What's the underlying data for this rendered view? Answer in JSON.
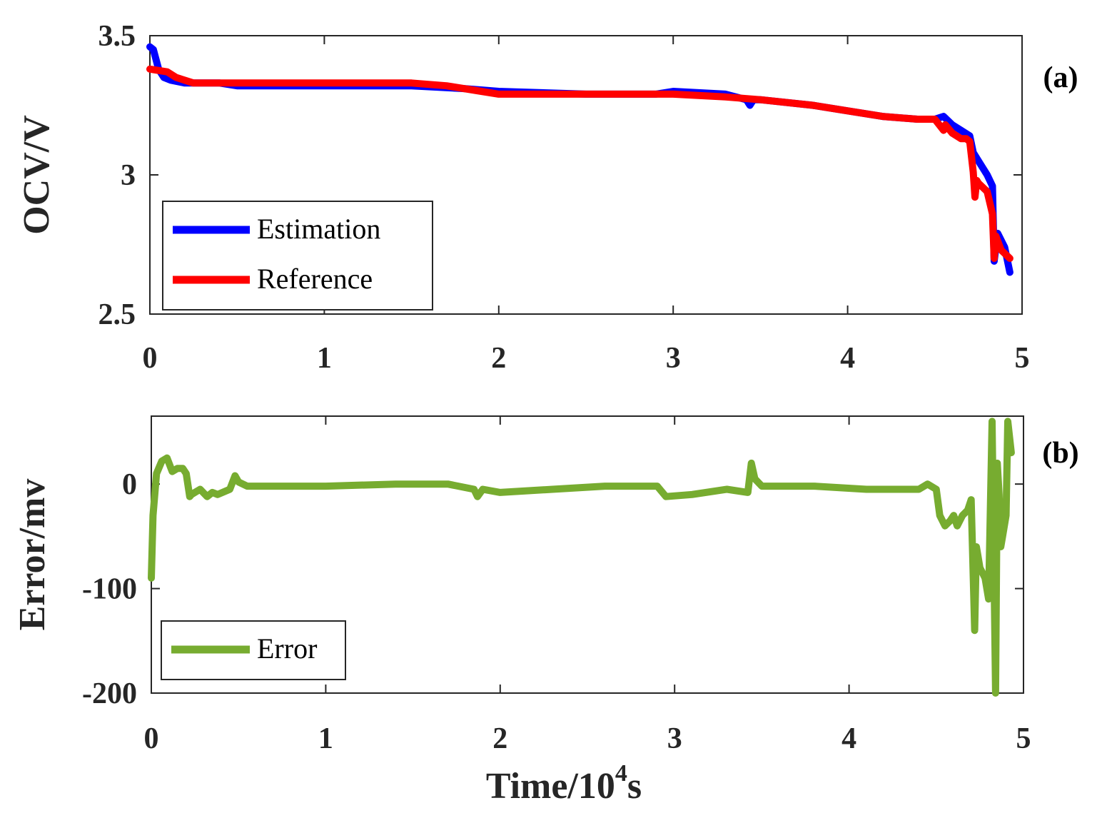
{
  "chart_data": [
    {
      "panel_label": "(a)",
      "type": "line",
      "xlabel": "",
      "ylabel": "OCV/V",
      "xlim": [
        0,
        5
      ],
      "ylim": [
        2.5,
        3.5
      ],
      "xticks": [
        "0",
        "1",
        "2",
        "3",
        "4",
        "5"
      ],
      "yticks": [
        "2.5",
        "3",
        "3.5"
      ],
      "xtick_values": [
        0,
        1,
        2,
        3,
        4,
        5
      ],
      "ytick_values": [
        2.5,
        3.0,
        3.5
      ],
      "grid": false,
      "legend_position": "bottom-left",
      "series": [
        {
          "name": "Estimation",
          "color": "#0000ff",
          "x": [
            0,
            0.02,
            0.05,
            0.08,
            0.12,
            0.2,
            0.3,
            0.4,
            0.5,
            0.7,
            1.0,
            1.5,
            1.8,
            2.0,
            2.5,
            2.9,
            3.0,
            3.3,
            3.42,
            3.44,
            3.46,
            3.5,
            3.8,
            4.0,
            4.2,
            4.4,
            4.5,
            4.55,
            4.6,
            4.65,
            4.7,
            4.72,
            4.75,
            4.8,
            4.83,
            4.84,
            4.86,
            4.9,
            4.93
          ],
          "y": [
            3.46,
            3.45,
            3.38,
            3.35,
            3.34,
            3.33,
            3.33,
            3.33,
            3.32,
            3.32,
            3.32,
            3.32,
            3.31,
            3.3,
            3.29,
            3.29,
            3.3,
            3.29,
            3.27,
            3.25,
            3.27,
            3.27,
            3.25,
            3.23,
            3.21,
            3.2,
            3.2,
            3.21,
            3.18,
            3.16,
            3.14,
            3.08,
            3.05,
            3.0,
            2.96,
            2.69,
            2.79,
            2.74,
            2.65
          ]
        },
        {
          "name": "Reference",
          "color": "#ff0000",
          "x": [
            0,
            0.1,
            0.15,
            0.25,
            0.5,
            1.0,
            1.5,
            1.7,
            1.9,
            2.0,
            2.5,
            3.0,
            3.3,
            3.5,
            3.8,
            4.0,
            4.2,
            4.4,
            4.5,
            4.55,
            4.56,
            4.6,
            4.65,
            4.68,
            4.7,
            4.72,
            4.73,
            4.74,
            4.75,
            4.8,
            4.83,
            4.84,
            4.85,
            4.88,
            4.93
          ],
          "y": [
            3.38,
            3.37,
            3.35,
            3.33,
            3.33,
            3.33,
            3.33,
            3.32,
            3.3,
            3.29,
            3.29,
            3.29,
            3.28,
            3.27,
            3.25,
            3.23,
            3.21,
            3.2,
            3.2,
            3.16,
            3.18,
            3.15,
            3.13,
            3.13,
            3.12,
            3.01,
            2.92,
            2.98,
            2.97,
            2.94,
            2.86,
            2.7,
            2.78,
            2.73,
            2.7
          ]
        }
      ]
    },
    {
      "panel_label": "(b)",
      "type": "line",
      "xlabel": "Time/10",
      "xlabel_superscript": "4",
      "xlabel_suffix": "s",
      "ylabel": "Error/mv",
      "xlim": [
        0,
        5
      ],
      "ylim": [
        -200,
        65
      ],
      "xticks": [
        "0",
        "1",
        "2",
        "3",
        "4",
        "5"
      ],
      "yticks": [
        "-200",
        "-100",
        "0"
      ],
      "xtick_values": [
        0,
        1,
        2,
        3,
        4,
        5
      ],
      "ytick_values": [
        -200,
        -100,
        0
      ],
      "grid": false,
      "legend_position": "bottom-left",
      "series": [
        {
          "name": "Error",
          "color": "#77ac30",
          "x": [
            0,
            0.01,
            0.03,
            0.06,
            0.09,
            0.12,
            0.15,
            0.18,
            0.2,
            0.22,
            0.23,
            0.28,
            0.32,
            0.35,
            0.38,
            0.45,
            0.48,
            0.5,
            0.55,
            0.7,
            1.0,
            1.4,
            1.7,
            1.85,
            1.87,
            1.9,
            2.0,
            2.3,
            2.6,
            2.9,
            2.95,
            3.1,
            3.3,
            3.42,
            3.44,
            3.46,
            3.5,
            3.8,
            4.1,
            4.4,
            4.45,
            4.5,
            4.52,
            4.55,
            4.58,
            4.6,
            4.62,
            4.65,
            4.68,
            4.7,
            4.72,
            4.73,
            4.74,
            4.75,
            4.78,
            4.8,
            4.82,
            4.84,
            4.85,
            4.86,
            4.87,
            4.88,
            4.9,
            4.91,
            4.93
          ],
          "y": [
            -90,
            -30,
            10,
            22,
            25,
            12,
            15,
            15,
            10,
            -12,
            -10,
            -5,
            -12,
            -8,
            -10,
            -5,
            8,
            2,
            -2,
            -2,
            -2,
            0,
            0,
            -5,
            -12,
            -5,
            -8,
            -5,
            -2,
            -2,
            -12,
            -10,
            -5,
            -8,
            20,
            5,
            -2,
            -2,
            -5,
            -5,
            0,
            -5,
            -30,
            -40,
            -35,
            -30,
            -40,
            -30,
            -25,
            -15,
            -140,
            -60,
            -70,
            -80,
            -90,
            -110,
            60,
            -200,
            20,
            -10,
            -60,
            -50,
            -30,
            60,
            30
          ]
        }
      ]
    }
  ]
}
